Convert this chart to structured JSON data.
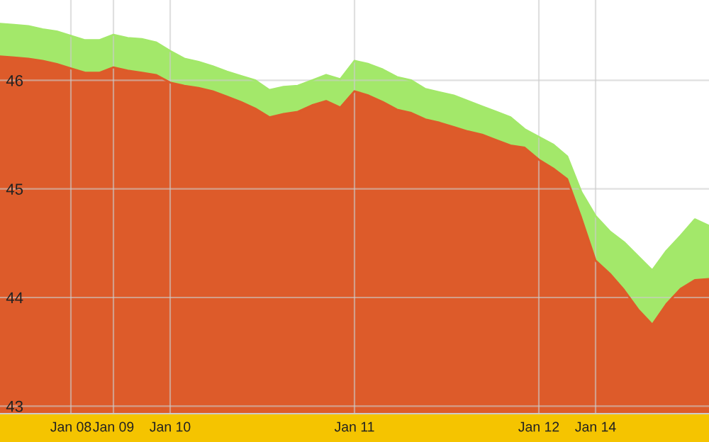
{
  "chart_data": {
    "type": "area",
    "categories": [
      null,
      null,
      null,
      null,
      null,
      "Jan 08",
      null,
      null,
      "Jan 09",
      null,
      null,
      null,
      "Jan 10",
      null,
      null,
      null,
      null,
      null,
      null,
      null,
      null,
      null,
      null,
      null,
      null,
      "Jan 11",
      null,
      null,
      null,
      null,
      null,
      null,
      null,
      null,
      null,
      null,
      null,
      null,
      "Jan 12",
      null,
      null,
      null,
      "Jan 14",
      null,
      null,
      null,
      null,
      null,
      null,
      null,
      null
    ],
    "series": [
      {
        "color": "#a3e86a",
        "values": [
          46.52,
          46.51,
          46.5,
          46.47,
          46.45,
          46.41,
          46.37,
          46.37,
          46.42,
          46.39,
          46.38,
          46.35,
          46.27,
          46.2,
          46.17,
          46.13,
          46.08,
          46.04,
          46.0,
          45.91,
          45.94,
          45.95,
          46.0,
          46.05,
          46.01,
          46.18,
          46.15,
          46.1,
          46.03,
          46.0,
          45.92,
          45.89,
          45.86,
          45.81,
          45.76,
          45.71,
          45.66,
          45.55,
          45.48,
          45.41,
          45.3,
          44.97,
          44.75,
          44.61,
          44.51,
          44.38,
          44.25,
          44.43,
          44.57,
          44.72,
          44.66
        ]
      },
      {
        "color": "#dd5b2a",
        "values": [
          46.22,
          46.21,
          46.2,
          46.18,
          46.15,
          46.11,
          46.07,
          46.07,
          46.12,
          46.09,
          46.07,
          46.05,
          45.98,
          45.95,
          45.93,
          45.9,
          45.85,
          45.8,
          45.74,
          45.66,
          45.69,
          45.71,
          45.77,
          45.81,
          45.75,
          45.9,
          45.86,
          45.8,
          45.73,
          45.7,
          45.64,
          45.61,
          45.57,
          45.53,
          45.5,
          45.45,
          45.4,
          45.38,
          45.27,
          45.19,
          45.09,
          44.73,
          44.34,
          44.22,
          44.07,
          43.89,
          43.75,
          43.94,
          44.08,
          44.16,
          44.17
        ]
      }
    ],
    "ylim": [
      42.93,
      46.74
    ],
    "yticks": [
      43,
      44,
      45,
      46
    ],
    "grid": true,
    "legend": false
  }
}
